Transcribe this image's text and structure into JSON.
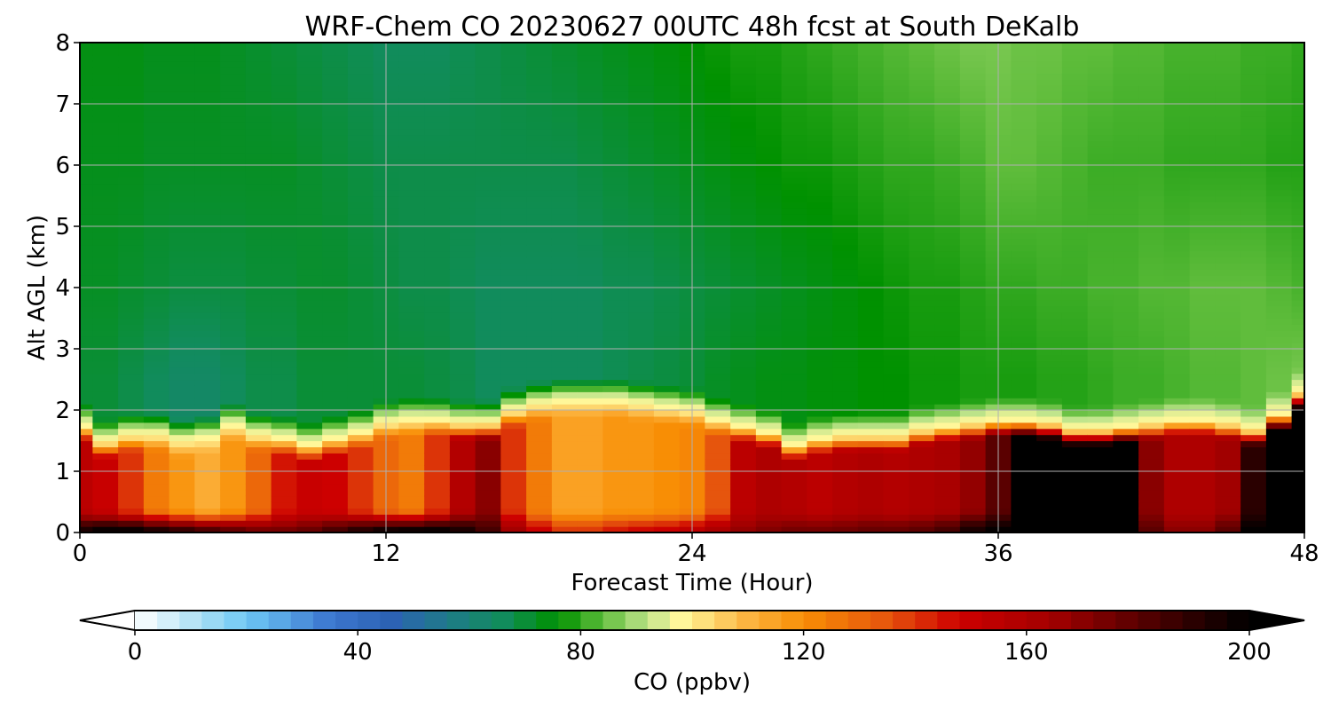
{
  "chart_data": {
    "type": "heatmap",
    "title": "WRF-Chem CO  20230627 00UTC 48h fcst at South DeKalb",
    "xlabel": "Forecast Time (Hour)",
    "ylabel": "Alt AGL (km)",
    "xlim": [
      0,
      48
    ],
    "ylim": [
      0,
      8
    ],
    "x_ticks": [
      0,
      12,
      24,
      36,
      48
    ],
    "x_tick_labels": [
      "0",
      "12",
      "24",
      "36",
      "48"
    ],
    "y_ticks": [
      0,
      1,
      2,
      3,
      4,
      5,
      6,
      7,
      8
    ],
    "y_tick_labels": [
      "0",
      "1",
      "2",
      "3",
      "4",
      "5",
      "6",
      "7",
      "8"
    ],
    "grid": true,
    "x": [
      0,
      1,
      2,
      3,
      4,
      5,
      6,
      7,
      8,
      9,
      10,
      11,
      12,
      13,
      14,
      15,
      16,
      17,
      18,
      19,
      20,
      21,
      22,
      23,
      24,
      25,
      26,
      27,
      28,
      29,
      30,
      31,
      32,
      33,
      34,
      35,
      36,
      37,
      38,
      39,
      40,
      41,
      42,
      43,
      44,
      45,
      46,
      47,
      48
    ],
    "boundary_layer_top_km": [
      1.75,
      1.5,
      1.6,
      1.6,
      1.5,
      1.55,
      1.75,
      1.6,
      1.55,
      1.45,
      1.55,
      1.65,
      1.8,
      1.85,
      1.85,
      1.8,
      1.8,
      2.0,
      2.1,
      2.15,
      2.15,
      2.15,
      2.1,
      2.05,
      2.0,
      1.85,
      1.75,
      1.65,
      1.45,
      1.55,
      1.6,
      1.6,
      1.6,
      1.7,
      1.75,
      1.8,
      1.85,
      1.85,
      1.8,
      1.7,
      1.7,
      1.75,
      1.8,
      1.85,
      1.85,
      1.8,
      1.7,
      1.95,
      2.3
    ],
    "pbl_co_ppbv": [
      155,
      150,
      140,
      125,
      118,
      112,
      118,
      130,
      145,
      150,
      148,
      140,
      130,
      125,
      140,
      158,
      170,
      140,
      125,
      115,
      115,
      118,
      118,
      120,
      122,
      135,
      155,
      160,
      158,
      155,
      158,
      160,
      158,
      160,
      162,
      168,
      180,
      200,
      200,
      200,
      200,
      200,
      170,
      160,
      160,
      165,
      190,
      200,
      200
    ],
    "surface_co_ppbv": [
      195,
      200,
      200,
      195,
      190,
      185,
      180,
      175,
      175,
      178,
      185,
      192,
      198,
      200,
      200,
      195,
      185,
      165,
      150,
      140,
      140,
      145,
      148,
      150,
      155,
      162,
      168,
      172,
      175,
      175,
      176,
      178,
      178,
      180,
      185,
      195,
      200,
      200,
      200,
      200,
      200,
      200,
      180,
      170,
      170,
      180,
      200,
      200,
      200
    ],
    "free_troposphere_co_ppbv": [
      {
        "alt_km": 2.5,
        "values": [
          70,
          70,
          68,
          66,
          64,
          64,
          66,
          68,
          68,
          70,
          70,
          70,
          70,
          70,
          69,
          68,
          66,
          66,
          66,
          66,
          66,
          67,
          68,
          69,
          70,
          72,
          73,
          74,
          74,
          75,
          75,
          76,
          76,
          77,
          77,
          78,
          78,
          78,
          79,
          79,
          80,
          81,
          81,
          82,
          83,
          83,
          84,
          85,
          86
        ]
      },
      {
        "alt_km": 4.0,
        "values": [
          72,
          72,
          71,
          70,
          69,
          69,
          69,
          70,
          70,
          71,
          71,
          70,
          69,
          68,
          68,
          67,
          66,
          66,
          66,
          66,
          66,
          67,
          67,
          68,
          69,
          70,
          71,
          72,
          73,
          74,
          75,
          76,
          77,
          78,
          78,
          79,
          80,
          80,
          81,
          81,
          82,
          82,
          83,
          83,
          84,
          84,
          84,
          83,
          82
        ]
      },
      {
        "alt_km": 6.0,
        "values": [
          73,
          73,
          73,
          72,
          72,
          72,
          72,
          72,
          72,
          71,
          70,
          69,
          68,
          68,
          68,
          68,
          68,
          68,
          68,
          68,
          69,
          70,
          71,
          72,
          73,
          74,
          75,
          76,
          77,
          77,
          78,
          79,
          80,
          80,
          81,
          82,
          84,
          84,
          83,
          82,
          81,
          81,
          81,
          80,
          80,
          80,
          80,
          79,
          79
        ]
      },
      {
        "alt_km": 8.0,
        "values": [
          74,
          74,
          74,
          73,
          73,
          73,
          72,
          71,
          70,
          69,
          68,
          67,
          66,
          66,
          66,
          67,
          68,
          69,
          70,
          71,
          72,
          73,
          74,
          75,
          76,
          77,
          78,
          78,
          79,
          80,
          81,
          82,
          83,
          84,
          85,
          86,
          86,
          85,
          85,
          84,
          84,
          83,
          83,
          82,
          82,
          82,
          81,
          81,
          80
        ]
      }
    ],
    "colorbar": {
      "label": "CO  (ppbv)",
      "min": 0,
      "max": 200,
      "ticks": [
        0,
        40,
        80,
        120,
        160,
        200
      ],
      "tick_labels": [
        "0",
        "40",
        "80",
        "120",
        "160",
        "200"
      ],
      "extend": "both",
      "color_stops": [
        {
          "v": 0,
          "c": "#ffffff"
        },
        {
          "v": 12,
          "c": "#a8def4"
        },
        {
          "v": 20,
          "c": "#6ec8f5"
        },
        {
          "v": 35,
          "c": "#3c77d0"
        },
        {
          "v": 46,
          "c": "#2c62b4"
        },
        {
          "v": 56,
          "c": "#1f7a8a"
        },
        {
          "v": 66,
          "c": "#118c5c"
        },
        {
          "v": 76,
          "c": "#009100"
        },
        {
          "v": 84,
          "c": "#60bd3c"
        },
        {
          "v": 92,
          "c": "#c0e58c"
        },
        {
          "v": 98,
          "c": "#fff79a"
        },
        {
          "v": 110,
          "c": "#fcb440"
        },
        {
          "v": 120,
          "c": "#f88e05"
        },
        {
          "v": 135,
          "c": "#e6550d"
        },
        {
          "v": 148,
          "c": "#cd0000"
        },
        {
          "v": 165,
          "c": "#a10000"
        },
        {
          "v": 180,
          "c": "#5a0000"
        },
        {
          "v": 190,
          "c": "#2a0000"
        },
        {
          "v": 200,
          "c": "#000000"
        }
      ]
    }
  }
}
